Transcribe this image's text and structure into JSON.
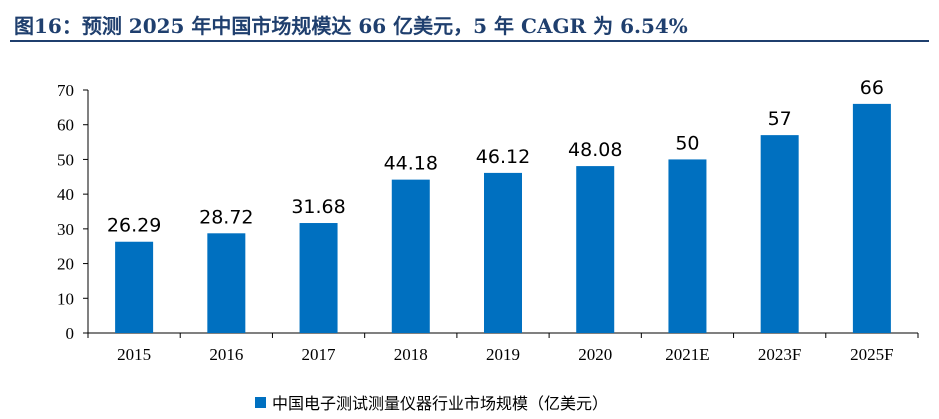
{
  "header": {
    "title": "图16：预测 2025 年中国市场规模达 66 亿美元，5 年 CAGR 为 6.54%"
  },
  "chart_data": {
    "type": "bar",
    "categories": [
      "2015",
      "2016",
      "2017",
      "2018",
      "2019",
      "2020",
      "2021E",
      "2023F",
      "2025F"
    ],
    "series": [
      {
        "name": "中国电子测试测量仪器行业市场规模（亿美元）",
        "values": [
          26.29,
          28.72,
          31.68,
          44.18,
          46.12,
          48.08,
          50,
          57,
          66
        ],
        "labels": [
          "26.29",
          "28.72",
          "31.68",
          "44.18",
          "46.12",
          "48.08",
          "50",
          "57",
          "66"
        ]
      }
    ],
    "ylim": [
      0,
      70
    ],
    "yticks": [
      "0",
      "10",
      "20",
      "30",
      "40",
      "50",
      "60",
      "70"
    ],
    "grid": false,
    "legend_position": "bottom",
    "colors": {
      "bar": "#0070c0",
      "title": "#1f3f6e",
      "axis": "#000000"
    }
  }
}
